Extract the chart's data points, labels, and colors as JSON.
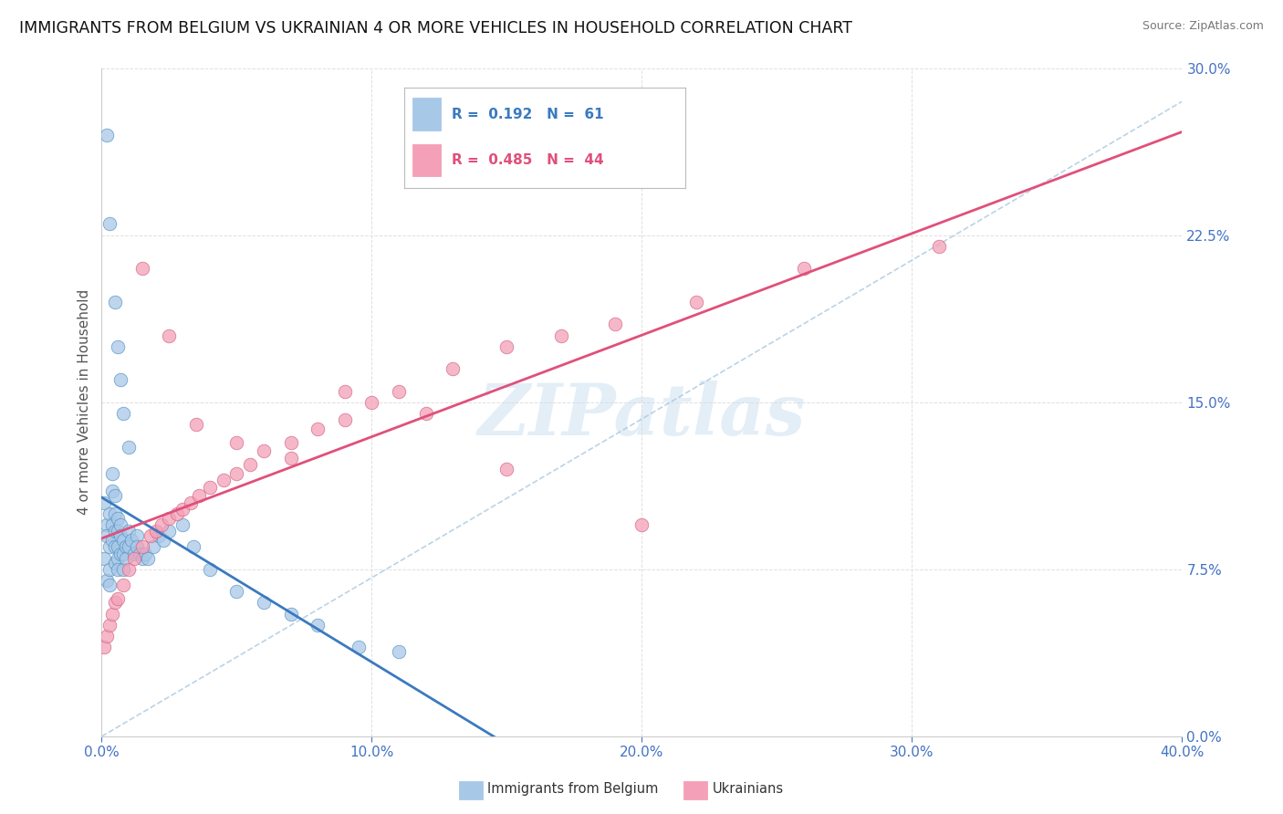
{
  "title": "IMMIGRANTS FROM BELGIUM VS UKRAINIAN 4 OR MORE VEHICLES IN HOUSEHOLD CORRELATION CHART",
  "source": "Source: ZipAtlas.com",
  "ylabel_label": "4 or more Vehicles in Household",
  "legend1_r": "0.192",
  "legend1_n": "61",
  "legend2_r": "0.485",
  "legend2_n": "44",
  "legend1_label": "Immigrants from Belgium",
  "legend2_label": "Ukrainians",
  "xmin": 0.0,
  "xmax": 0.4,
  "ymin": 0.0,
  "ymax": 0.3,
  "blue_color": "#a8c8e8",
  "pink_color": "#f4a0b8",
  "blue_line_color": "#3a7abf",
  "pink_line_color": "#e0507a",
  "blue_edge_color": "#5090c0",
  "pink_edge_color": "#d06080",
  "dash_line_color": "#aac8e0",
  "watermark_color": "#c8dff0",
  "grid_color": "#e0e0e0",
  "bg_color": "#ffffff",
  "title_fontsize": 12.5,
  "axis_fontsize": 11,
  "tick_fontsize": 11,
  "blue_scatter_x": [
    0.001,
    0.001,
    0.002,
    0.002,
    0.002,
    0.003,
    0.003,
    0.003,
    0.003,
    0.004,
    0.004,
    0.004,
    0.004,
    0.005,
    0.005,
    0.005,
    0.005,
    0.005,
    0.006,
    0.006,
    0.006,
    0.006,
    0.006,
    0.007,
    0.007,
    0.007,
    0.008,
    0.008,
    0.008,
    0.009,
    0.009,
    0.01,
    0.01,
    0.011,
    0.012,
    0.013,
    0.013,
    0.014,
    0.015,
    0.016,
    0.017,
    0.019,
    0.021,
    0.023,
    0.025,
    0.03,
    0.034,
    0.04,
    0.05,
    0.06,
    0.07,
    0.08,
    0.095,
    0.11,
    0.002,
    0.003,
    0.005,
    0.006,
    0.007,
    0.008,
    0.01
  ],
  "blue_scatter_y": [
    0.105,
    0.08,
    0.095,
    0.09,
    0.07,
    0.1,
    0.085,
    0.075,
    0.068,
    0.118,
    0.11,
    0.095,
    0.088,
    0.108,
    0.1,
    0.092,
    0.085,
    0.078,
    0.098,
    0.092,
    0.085,
    0.08,
    0.075,
    0.095,
    0.09,
    0.082,
    0.088,
    0.082,
    0.075,
    0.085,
    0.08,
    0.092,
    0.085,
    0.088,
    0.082,
    0.09,
    0.085,
    0.082,
    0.08,
    0.082,
    0.08,
    0.085,
    0.09,
    0.088,
    0.092,
    0.095,
    0.085,
    0.075,
    0.065,
    0.06,
    0.055,
    0.05,
    0.04,
    0.038,
    0.27,
    0.23,
    0.195,
    0.175,
    0.16,
    0.145,
    0.13
  ],
  "pink_scatter_x": [
    0.001,
    0.002,
    0.003,
    0.004,
    0.005,
    0.006,
    0.008,
    0.01,
    0.012,
    0.015,
    0.018,
    0.02,
    0.022,
    0.025,
    0.028,
    0.03,
    0.033,
    0.036,
    0.04,
    0.045,
    0.05,
    0.055,
    0.06,
    0.07,
    0.08,
    0.09,
    0.1,
    0.11,
    0.13,
    0.15,
    0.17,
    0.19,
    0.22,
    0.26,
    0.31,
    0.015,
    0.025,
    0.035,
    0.05,
    0.07,
    0.09,
    0.12,
    0.15,
    0.2
  ],
  "pink_scatter_y": [
    0.04,
    0.045,
    0.05,
    0.055,
    0.06,
    0.062,
    0.068,
    0.075,
    0.08,
    0.085,
    0.09,
    0.092,
    0.095,
    0.098,
    0.1,
    0.102,
    0.105,
    0.108,
    0.112,
    0.115,
    0.118,
    0.122,
    0.128,
    0.132,
    0.138,
    0.142,
    0.15,
    0.155,
    0.165,
    0.175,
    0.18,
    0.185,
    0.195,
    0.21,
    0.22,
    0.21,
    0.18,
    0.14,
    0.132,
    0.125,
    0.155,
    0.145,
    0.12,
    0.095
  ]
}
